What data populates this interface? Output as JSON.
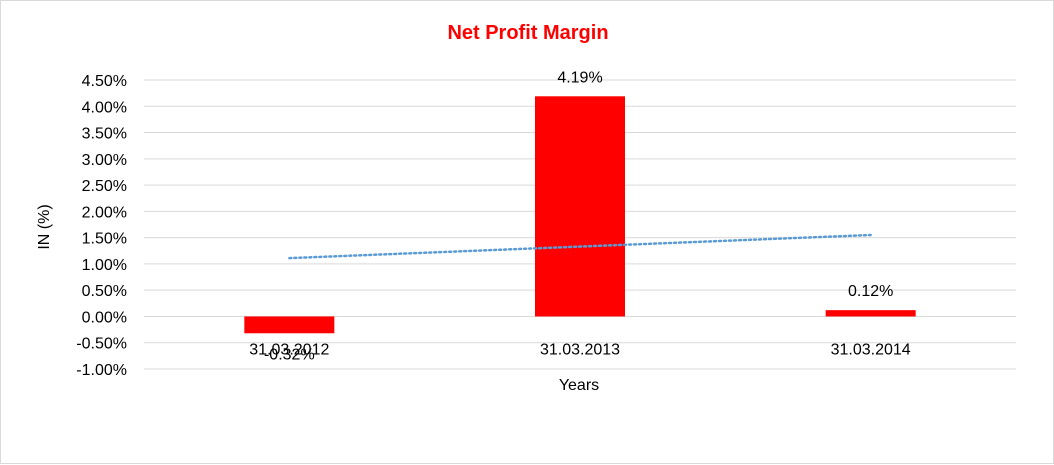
{
  "chart_data": {
    "type": "bar",
    "title": "Net Profit Margin",
    "xlabel": "Years",
    "ylabel": "IN (%)",
    "categories": [
      "31.03.2012",
      "31.03.2013",
      "31.03.2014"
    ],
    "values": [
      -0.32,
      4.19,
      0.12
    ],
    "data_labels": [
      "-0.32%",
      "4.19%",
      "0.12%"
    ],
    "ylim": [
      -1.0,
      4.5
    ],
    "yticks": [
      4.5,
      4.0,
      3.5,
      3.0,
      2.5,
      2.0,
      1.5,
      1.0,
      0.5,
      0.0,
      -0.5,
      -1.0
    ],
    "ytick_labels": [
      "4.50%",
      "4.00%",
      "3.50%",
      "3.00%",
      "2.50%",
      "2.00%",
      "1.50%",
      "1.00%",
      "0.50%",
      "0.00%",
      "-0.50%",
      "-1.00%"
    ],
    "trendline": {
      "type": "linear",
      "color": "#5b9bd5",
      "style": "dotted"
    },
    "grid": true,
    "legend": "none",
    "colors": {
      "bar": "#ff0000",
      "title": "#ff0000",
      "grid": "#d9d9d9"
    }
  }
}
